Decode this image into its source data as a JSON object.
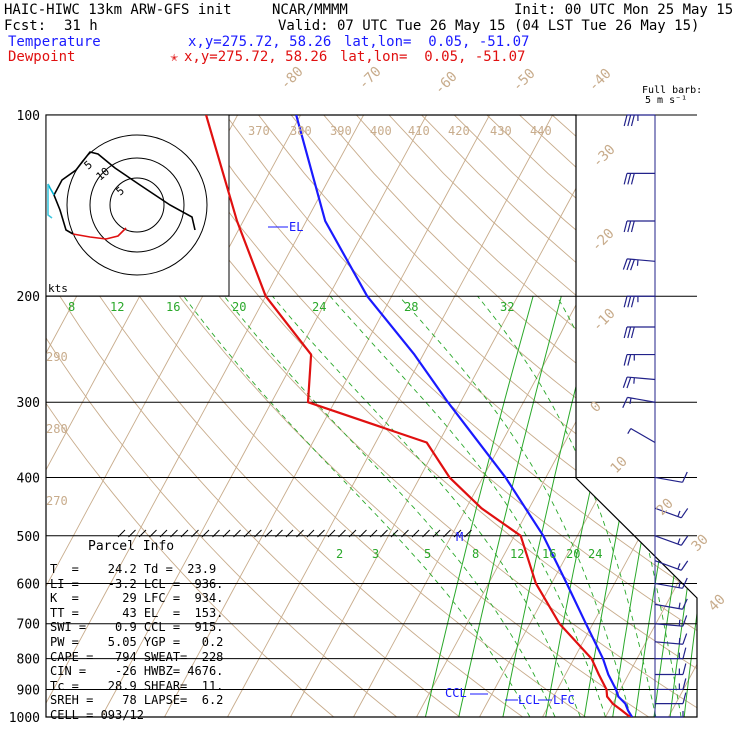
{
  "header": {
    "model": "HAIC-HIWC 13km ARW-GFS init",
    "org": "NCAR/MMMM",
    "init": "Init: 00 UTC Mon 25 May 15",
    "fcst_label": "Fcst:",
    "fcst_value": "31 h",
    "valid": "Valid: 07 UTC Tue 26 May 15 (04 LST Tue 26 May 15)",
    "temp_label": "Temperature",
    "temp_xy": "x,y=275.72, 58.26",
    "temp_latlon": "lat,lon=  0.05, -51.07",
    "dew_label": "Dewpoint",
    "dew_marker": "✭",
    "dew_xy": "x,y=275.72, 58.26",
    "dew_latlon": "lat,lon=  0.05, -51.07",
    "barb_title1": "Full barb:",
    "barb_title2": "5 m s⁻¹"
  },
  "parcel_info": {
    "title": "Parcel Info",
    "rows": [
      "T  =    24.2 Td =  23.9",
      "LI =    -3.2 LCL =  936.",
      "K  =      29 LFC =  934.",
      "TT =      43 EL  =  153.",
      "SWI =    0.9 CCL =  915.",
      "PW =    5.05 YGP =   0.2",
      "CAPE =   794 SWEAT=  228",
      "CIN =    -26 HWBZ= 4676.",
      "Tc =    28.9 SHEAR=  11.",
      "SREH =    78 LAPSE=  6.2",
      "CELL = 093/12"
    ]
  },
  "hodograph": {
    "unit_label": "kts",
    "ring_labels": [
      "5",
      "10",
      "5"
    ]
  },
  "sounding_labels": {
    "el": "EL",
    "ccl": "CCL",
    "lcl": "LCL",
    "lfc": "LFC",
    "m": "M"
  },
  "chart_data": {
    "type": "line",
    "title": "",
    "pressure_levels": [
      "100",
      "200",
      "300",
      "400",
      "500",
      "600",
      "700",
      "800",
      "900",
      "1000"
    ],
    "isotherm_labels": [
      "-80",
      "-70",
      "-60",
      "-50",
      "-40",
      "-30",
      "-20",
      "-10",
      "0",
      "10",
      "20",
      "30",
      "40"
    ],
    "theta_labels": [
      "370",
      "380",
      "390",
      "400",
      "410",
      "420",
      "430",
      "440",
      "290",
      "280",
      "270"
    ],
    "mixing_ratio_labels_upper": [
      "8",
      "12",
      "16",
      "20",
      "24",
      "28",
      "32"
    ],
    "mixing_ratio_labels_lower": [
      "2",
      "3",
      "5",
      "8",
      "12",
      "16",
      "20",
      "24"
    ],
    "series": [
      {
        "name": "Temperature",
        "color": "#1a1aff",
        "pressure": [
          1000,
          975,
          950,
          925,
          900,
          850,
          800,
          700,
          600,
          500,
          400,
          300,
          250,
          200,
          150,
          100
        ],
        "value": [
          24.2,
          23.0,
          22.0,
          20.3,
          19.3,
          16.8,
          14.6,
          8.9,
          2.4,
          -5.4,
          -16.4,
          -32.0,
          -41.4,
          -53.9,
          -67.0,
          -80.7
        ]
      },
      {
        "name": "Dewpoint",
        "color": "#e01010",
        "pressure": [
          1000,
          975,
          950,
          925,
          900,
          850,
          800,
          700,
          600,
          500,
          450,
          400,
          350,
          300,
          250,
          200,
          150,
          100
        ],
        "value": [
          23.9,
          22.0,
          20.0,
          18.5,
          17.8,
          15.3,
          12.8,
          4.7,
          -2.5,
          -9.0,
          -17.6,
          -25.3,
          -31.9,
          -54.2,
          -57.8,
          -70.0,
          -81.0,
          -95.0
        ]
      }
    ],
    "wind_barbs": [
      {
        "p": 100,
        "dir": 270,
        "spd": 35
      },
      {
        "p": 125,
        "dir": 270,
        "spd": 30
      },
      {
        "p": 150,
        "dir": 270,
        "spd": 30
      },
      {
        "p": 175,
        "dir": 275,
        "spd": 35
      },
      {
        "p": 200,
        "dir": 270,
        "spd": 35
      },
      {
        "p": 225,
        "dir": 270,
        "spd": 30
      },
      {
        "p": 250,
        "dir": 270,
        "spd": 25
      },
      {
        "p": 275,
        "dir": 275,
        "spd": 25
      },
      {
        "p": 300,
        "dir": 280,
        "spd": 15
      },
      {
        "p": 350,
        "dir": 300,
        "spd": 5
      },
      {
        "p": 400,
        "dir": 100,
        "spd": 10
      },
      {
        "p": 450,
        "dir": 110,
        "spd": 15
      },
      {
        "p": 500,
        "dir": 110,
        "spd": 15
      },
      {
        "p": 550,
        "dir": 110,
        "spd": 15
      },
      {
        "p": 600,
        "dir": 100,
        "spd": 15
      },
      {
        "p": 650,
        "dir": 100,
        "spd": 15
      },
      {
        "p": 700,
        "dir": 95,
        "spd": 15
      },
      {
        "p": 750,
        "dir": 95,
        "spd": 15
      },
      {
        "p": 800,
        "dir": 90,
        "spd": 15
      },
      {
        "p": 850,
        "dir": 90,
        "spd": 15
      },
      {
        "p": 900,
        "dir": 90,
        "spd": 15
      },
      {
        "p": 950,
        "dir": 90,
        "spd": 10
      },
      {
        "p": 1000,
        "dir": 90,
        "spd": 5
      }
    ]
  }
}
